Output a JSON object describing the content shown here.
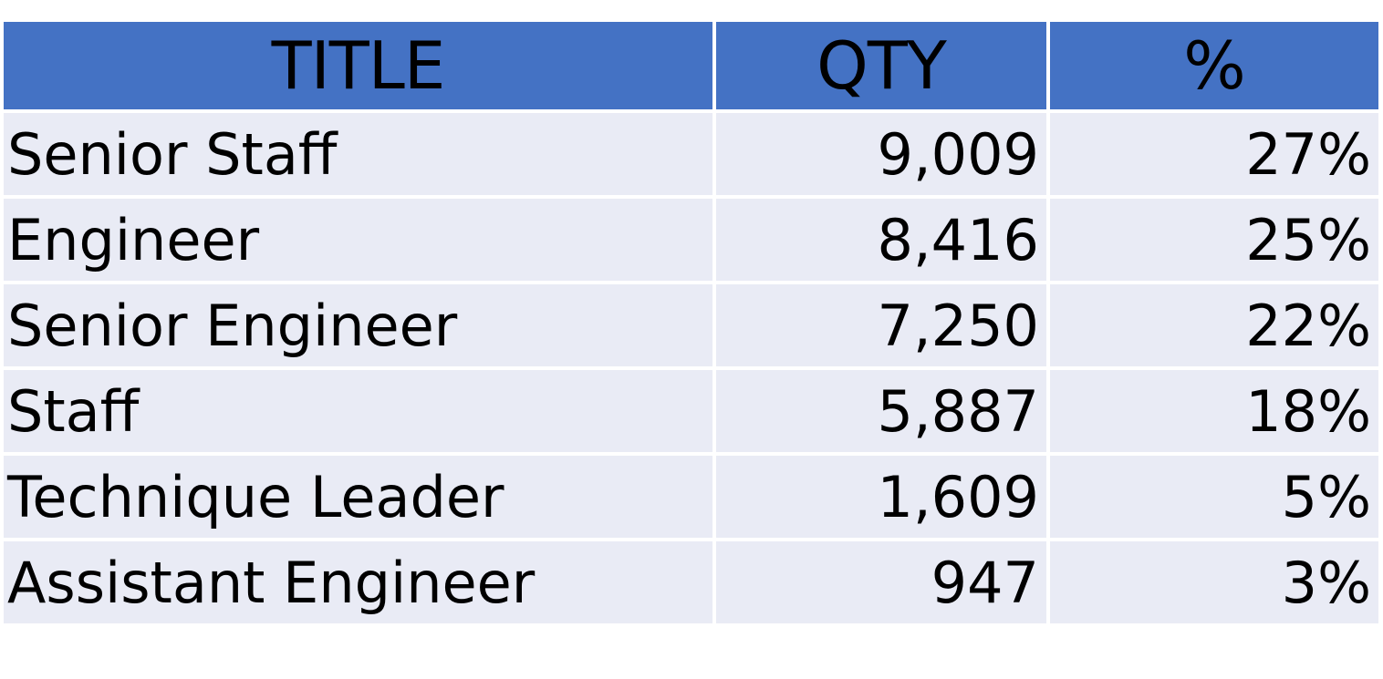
{
  "table": {
    "headers": [
      "TITLE",
      "QTY",
      "%"
    ],
    "rows": [
      {
        "title": "Senior Staff",
        "qty": "9,009",
        "pct": "27%"
      },
      {
        "title": "Engineer",
        "qty": "8,416",
        "pct": "25%"
      },
      {
        "title": "Senior Engineer",
        "qty": "7,250",
        "pct": "22%"
      },
      {
        "title": "Staff",
        "qty": "5,887",
        "pct": "18%"
      },
      {
        "title": "Technique Leader",
        "qty": "1,609",
        "pct": "5%"
      },
      {
        "title": "Assistant Engineer",
        "qty": "947",
        "pct": "3%"
      }
    ]
  },
  "colors": {
    "header_bg": "#4472c4",
    "row_bg": "#e9ebf5"
  }
}
